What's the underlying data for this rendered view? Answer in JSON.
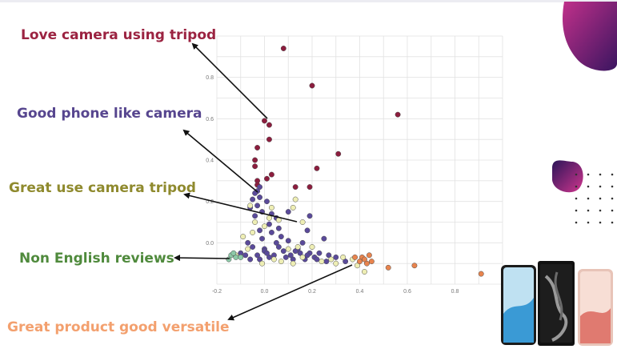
{
  "labels": {
    "love_camera": "Love camera using tripod",
    "good_phone": "Good phone like camera",
    "great_use": "Great use camera tripod",
    "non_english": "Non English reviews",
    "great_product": "Great product good versatile"
  },
  "colors": {
    "love_camera": "#9b2341",
    "good_phone": "#57468f",
    "great_use": "#8f8a2e",
    "non_english": "#4f8a3c",
    "great_product": "#f3a06e",
    "grid": "#e2e2e2",
    "blob_dark": "#3a1560",
    "blob_magenta": "#c0308a",
    "dot_pattern": "#333333"
  },
  "chart_data": {
    "type": "scatter",
    "xlim": [
      -0.2,
      1.0
    ],
    "ylim": [
      -0.2,
      1.0
    ],
    "x_ticks": [
      -0.2,
      0,
      0.2,
      0.4,
      0.6,
      0.8
    ],
    "y_ticks": [
      0,
      0.2,
      0.4,
      0.6,
      0.8
    ],
    "x_tick_labels": [
      "-0.2",
      "0.0",
      "0.2",
      "0.4",
      "0.6",
      "0.8"
    ],
    "y_tick_labels": [
      "0.0",
      "0.2",
      "0.4",
      "0.6",
      "0.8"
    ],
    "grid": true,
    "series": [
      {
        "key": "love_camera",
        "color": "#8c1d3e",
        "points": [
          [
            0.08,
            0.94
          ],
          [
            0.2,
            0.76
          ],
          [
            0.56,
            0.62
          ],
          [
            0.0,
            0.59
          ],
          [
            0.02,
            0.57
          ],
          [
            0.02,
            0.5
          ],
          [
            0.31,
            0.43
          ],
          [
            -0.03,
            0.46
          ],
          [
            -0.04,
            0.4
          ],
          [
            0.22,
            0.36
          ],
          [
            -0.04,
            0.37
          ],
          [
            0.03,
            0.33
          ],
          [
            0.13,
            0.27
          ],
          [
            0.19,
            0.27
          ],
          [
            0.01,
            0.31
          ],
          [
            -0.03,
            0.3
          ],
          [
            -0.03,
            0.28
          ]
        ]
      },
      {
        "key": "good_phone",
        "color": "#5a4a9a",
        "points": [
          [
            -0.02,
            0.27
          ],
          [
            -0.03,
            0.25
          ],
          [
            -0.04,
            0.24
          ],
          [
            -0.05,
            0.21
          ],
          [
            -0.02,
            0.22
          ],
          [
            -0.06,
            0.17
          ],
          [
            -0.03,
            0.18
          ],
          [
            -0.01,
            0.15
          ],
          [
            0.01,
            0.2
          ],
          [
            0.03,
            0.14
          ],
          [
            -0.04,
            0.13
          ],
          [
            0.02,
            0.09
          ],
          [
            0.06,
            0.07
          ],
          [
            -0.02,
            0.06
          ],
          [
            0.1,
            0.15
          ],
          [
            0.19,
            0.13
          ],
          [
            0.18,
            0.06
          ],
          [
            0.25,
            0.02
          ],
          [
            -0.07,
            0.0
          ],
          [
            -0.05,
            -0.02
          ],
          [
            0.0,
            -0.03
          ],
          [
            0.05,
            0.0
          ],
          [
            0.1,
            0.01
          ],
          [
            0.14,
            -0.03
          ],
          [
            0.19,
            -0.05
          ],
          [
            0.23,
            -0.05
          ],
          [
            -0.1,
            -0.05
          ],
          [
            -0.03,
            -0.06
          ],
          [
            0.02,
            -0.07
          ],
          [
            0.08,
            -0.04
          ],
          [
            0.12,
            -0.08
          ],
          [
            0.17,
            -0.08
          ],
          [
            0.21,
            -0.07
          ],
          [
            0.27,
            -0.06
          ],
          [
            0.3,
            -0.07
          ],
          [
            -0.06,
            -0.08
          ],
          [
            0.0,
            -0.04
          ],
          [
            0.04,
            -0.06
          ],
          [
            0.09,
            -0.07
          ],
          [
            0.15,
            -0.05
          ],
          [
            0.22,
            -0.08
          ],
          [
            0.26,
            -0.09
          ],
          [
            -0.08,
            -0.06
          ],
          [
            -0.02,
            -0.08
          ],
          [
            0.06,
            -0.02
          ],
          [
            0.11,
            -0.06
          ],
          [
            0.18,
            -0.06
          ],
          [
            0.01,
            -0.05
          ],
          [
            0.13,
            -0.04
          ],
          [
            0.34,
            -0.09
          ],
          [
            0.07,
            0.03
          ],
          [
            0.16,
            0.0
          ],
          [
            -0.01,
            0.02
          ],
          [
            0.03,
            0.05
          ],
          [
            0.05,
            0.12
          ]
        ]
      },
      {
        "key": "great_use",
        "color": "#eeeeb4",
        "points": [
          [
            0.13,
            0.21
          ],
          [
            0.12,
            0.17
          ],
          [
            0.03,
            0.17
          ],
          [
            0.06,
            0.11
          ],
          [
            -0.06,
            0.18
          ],
          [
            0.16,
            0.1
          ],
          [
            -0.04,
            0.1
          ],
          [
            0.02,
            0.12
          ],
          [
            -0.09,
            0.03
          ],
          [
            -0.05,
            0.05
          ],
          [
            0.0,
            0.08
          ],
          [
            -0.12,
            -0.06
          ],
          [
            -0.07,
            -0.03
          ],
          [
            0.04,
            -0.08
          ],
          [
            0.1,
            -0.03
          ],
          [
            0.16,
            -0.07
          ],
          [
            0.24,
            -0.09
          ],
          [
            0.28,
            -0.08
          ],
          [
            0.33,
            -0.07
          ],
          [
            0.37,
            -0.08
          ],
          [
            0.42,
            -0.14
          ],
          [
            0.12,
            -0.1
          ],
          [
            -0.01,
            -0.1
          ],
          [
            0.2,
            -0.02
          ],
          [
            0.07,
            -0.09
          ],
          [
            0.14,
            -0.02
          ],
          [
            0.3,
            -0.1
          ],
          [
            0.39,
            -0.11
          ]
        ]
      },
      {
        "key": "non_english",
        "color": "#8dc9a8",
        "points": [
          [
            -0.15,
            -0.08
          ],
          [
            -0.14,
            -0.06
          ],
          [
            -0.12,
            -0.07
          ],
          [
            -0.1,
            -0.07
          ],
          [
            -0.13,
            -0.05
          ]
        ]
      },
      {
        "key": "great_product",
        "color": "#e8844e",
        "points": [
          [
            0.38,
            -0.07
          ],
          [
            0.41,
            -0.07
          ],
          [
            0.4,
            -0.09
          ],
          [
            0.44,
            -0.06
          ],
          [
            0.45,
            -0.09
          ],
          [
            0.43,
            -0.1
          ],
          [
            0.42,
            -0.08
          ],
          [
            0.52,
            -0.12
          ],
          [
            0.63,
            -0.11
          ],
          [
            0.91,
            -0.15
          ]
        ]
      }
    ]
  }
}
